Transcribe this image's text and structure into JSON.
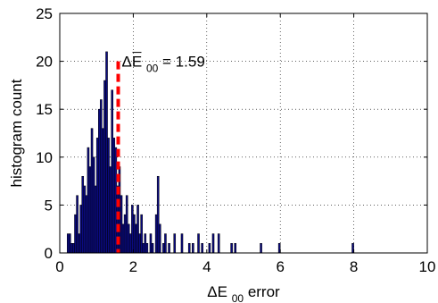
{
  "chart_data": {
    "type": "bar",
    "xlabel": "ΔE00 error",
    "xlabel_base": "ΔE",
    "xlabel_sub": "00",
    "xlabel_rest": " error",
    "ylabel": "histogram count",
    "xlim": [
      0,
      10
    ],
    "ylim": [
      0,
      25
    ],
    "xticks": [
      0,
      2,
      4,
      6,
      8,
      10
    ],
    "yticks": [
      0,
      5,
      10,
      15,
      20,
      25
    ],
    "grid": true,
    "bin_width": 0.05,
    "bar_color": "#0a0a80",
    "mean_line": {
      "x": 1.59,
      "color": "#ff0000"
    },
    "annotation": {
      "prefix": "ΔE",
      "subscript": "00",
      "text": "= 1.59"
    },
    "bins": [
      [
        0.2,
        2
      ],
      [
        0.25,
        2
      ],
      [
        0.3,
        1
      ],
      [
        0.35,
        1
      ],
      [
        0.4,
        4
      ],
      [
        0.45,
        6
      ],
      [
        0.5,
        2
      ],
      [
        0.55,
        5
      ],
      [
        0.6,
        8
      ],
      [
        0.65,
        7
      ],
      [
        0.7,
        6
      ],
      [
        0.75,
        11
      ],
      [
        0.8,
        9
      ],
      [
        0.85,
        13
      ],
      [
        0.9,
        10
      ],
      [
        0.95,
        7
      ],
      [
        1.0,
        12
      ],
      [
        1.05,
        15
      ],
      [
        1.1,
        16
      ],
      [
        1.15,
        13
      ],
      [
        1.2,
        18
      ],
      [
        1.25,
        21
      ],
      [
        1.3,
        12
      ],
      [
        1.35,
        9
      ],
      [
        1.4,
        17
      ],
      [
        1.45,
        12
      ],
      [
        1.5,
        11
      ],
      [
        1.55,
        7
      ],
      [
        1.6,
        9
      ],
      [
        1.65,
        6
      ],
      [
        1.7,
        3
      ],
      [
        1.75,
        4
      ],
      [
        1.8,
        6
      ],
      [
        1.85,
        3
      ],
      [
        1.9,
        2
      ],
      [
        1.95,
        5
      ],
      [
        2.0,
        4
      ],
      [
        2.05,
        3
      ],
      [
        2.1,
        5
      ],
      [
        2.15,
        2
      ],
      [
        2.2,
        4
      ],
      [
        2.25,
        1
      ],
      [
        2.3,
        2
      ],
      [
        2.35,
        1
      ],
      [
        2.45,
        2
      ],
      [
        2.5,
        1
      ],
      [
        2.6,
        4
      ],
      [
        2.65,
        8
      ],
      [
        2.7,
        3
      ],
      [
        2.8,
        1
      ],
      [
        2.85,
        2
      ],
      [
        2.95,
        1
      ],
      [
        3.1,
        2
      ],
      [
        3.3,
        2
      ],
      [
        3.5,
        1
      ],
      [
        3.6,
        1
      ],
      [
        3.75,
        2
      ],
      [
        3.85,
        1
      ],
      [
        4.05,
        1
      ],
      [
        4.15,
        2
      ],
      [
        4.3,
        2
      ],
      [
        4.65,
        1
      ],
      [
        4.75,
        1
      ],
      [
        5.45,
        1
      ],
      [
        5.95,
        1
      ],
      [
        7.95,
        1
      ]
    ]
  }
}
